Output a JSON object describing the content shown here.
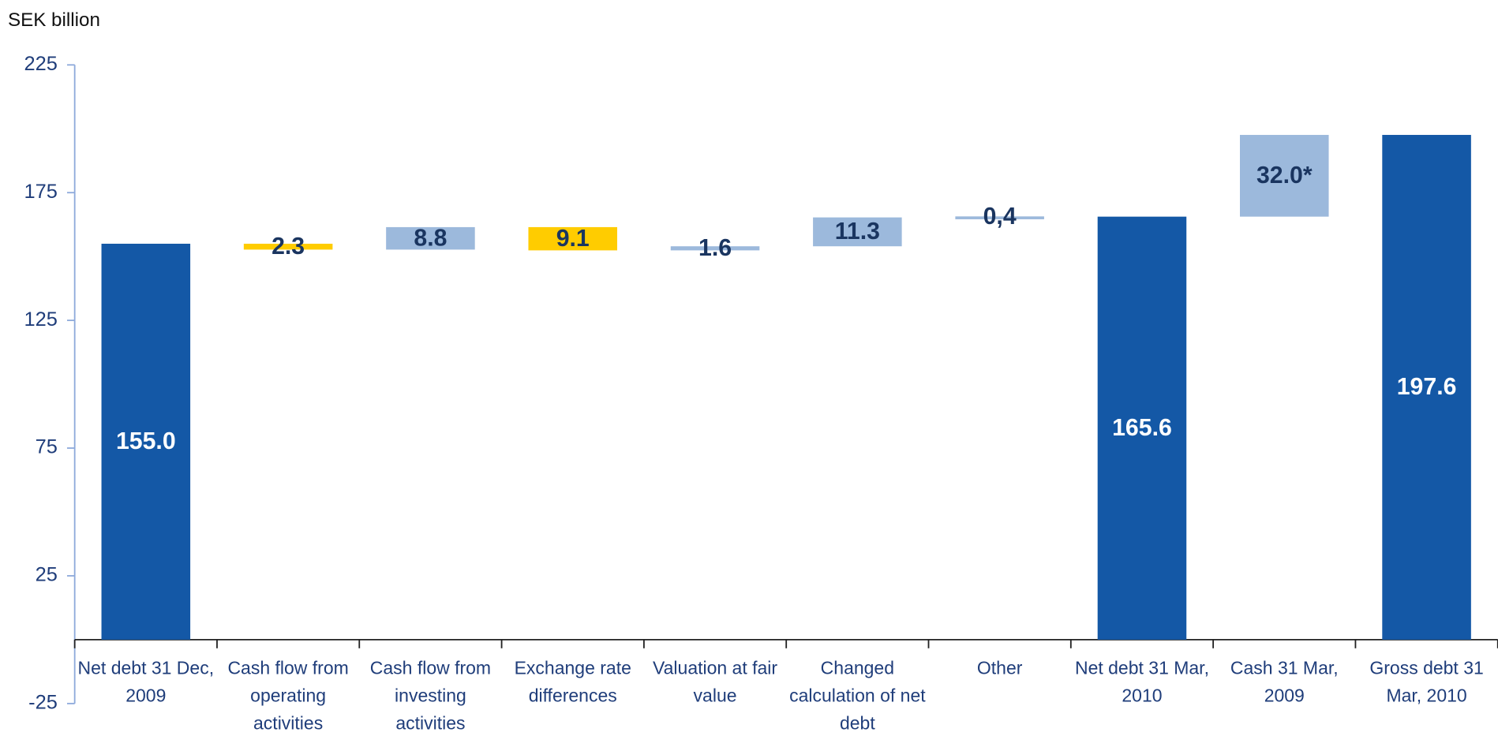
{
  "chart_data": {
    "type": "waterfall",
    "y_label": "SEK billion",
    "categories": [
      "Net debt 31 Dec, 2009",
      "Cash flow from operating activities",
      "Cash flow from investing activities",
      "Exchange rate differences",
      "Valuation at fair value",
      "Changed calculation of net debt",
      "Other",
      "Net debt 31 Mar, 2010",
      "Cash 31 Mar, 2009",
      "Gross debt 31 Mar, 2010"
    ],
    "measure": [
      "total",
      "relative",
      "relative",
      "relative",
      "relative",
      "relative",
      "relative",
      "total",
      "relative",
      "total"
    ],
    "values": [
      155.0,
      -2.3,
      8.8,
      -9.1,
      1.6,
      11.3,
      0.4,
      165.6,
      32.0,
      197.6
    ],
    "value_labels": [
      "155.0",
      "2.3",
      "8.8",
      "9.1",
      "1.6",
      "11.3",
      "0,4",
      "165.6",
      "32.0*",
      "197.6"
    ],
    "colors": {
      "total": "#1458a6",
      "increase": "#9cb9dc",
      "decrease": "#ffcc00"
    },
    "ylim": [
      -25,
      225
    ],
    "yticks": [
      -25,
      25,
      75,
      125,
      175,
      225
    ]
  }
}
